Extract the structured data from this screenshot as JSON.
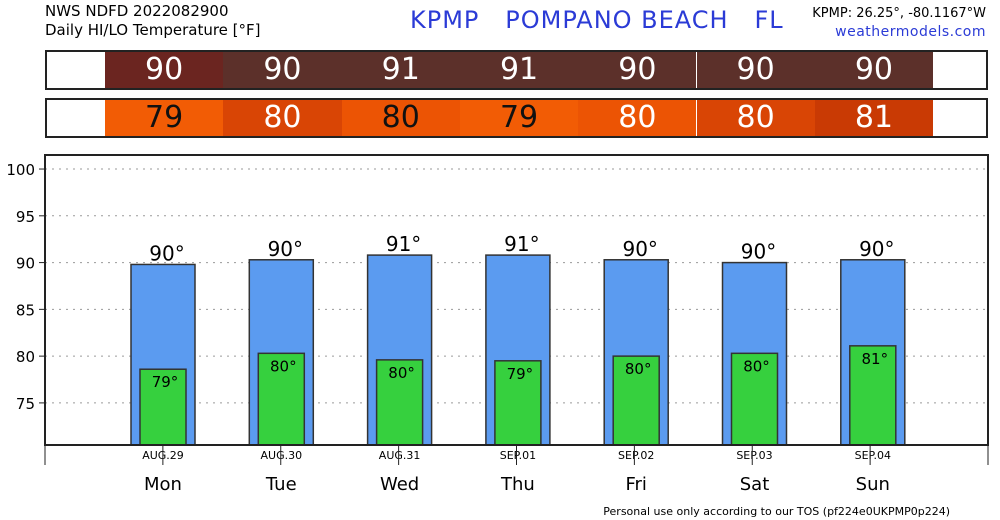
{
  "header": {
    "line1": "NWS NDFD 2022082900",
    "line2": "Daily HI/LO Temperature [°F]",
    "title": "KPMP   POMPANO BEACH   FL",
    "coords": "KPMP: 26.25°, -80.1167°W",
    "site": "weathermodels.com"
  },
  "strips": {
    "hi": [
      {
        "value": "90",
        "color": "#6b2520"
      },
      {
        "value": "90",
        "color": "#5c302a"
      },
      {
        "value": "91",
        "color": "#5c302a"
      },
      {
        "value": "91",
        "color": "#5c302a"
      },
      {
        "value": "90",
        "color": "#5c302a"
      },
      {
        "value": "90",
        "color": "#5c302a"
      },
      {
        "value": "90",
        "color": "#5c302a"
      }
    ],
    "lo": [
      {
        "value": "79",
        "color": "#f25c05"
      },
      {
        "value": "80",
        "color": "#d94505"
      },
      {
        "value": "80",
        "color": "#ec5404"
      },
      {
        "value": "79",
        "color": "#f25c05"
      },
      {
        "value": "80",
        "color": "#ec5404"
      },
      {
        "value": "80",
        "color": "#d94505"
      },
      {
        "value": "81",
        "color": "#c93a04"
      }
    ]
  },
  "chart_data": {
    "type": "bar",
    "categories": [
      "Mon",
      "Tue",
      "Wed",
      "Thu",
      "Fri",
      "Sat",
      "Sun"
    ],
    "dates": [
      "AUG.29",
      "AUG.30",
      "AUG.31",
      "SEP.01",
      "SEP.02",
      "SEP.03",
      "SEP.04"
    ],
    "series": [
      {
        "values": [
          89.8,
          90.3,
          90.8,
          90.8,
          90.3,
          90.0,
          90.3
        ],
        "labels": [
          "90°",
          "90°",
          "91°",
          "91°",
          "90°",
          "90°",
          "90°"
        ],
        "color": "#5b9bf0"
      },
      {
        "values": [
          78.6,
          80.3,
          79.6,
          79.5,
          80.0,
          80.3,
          81.1
        ],
        "labels": [
          "79°",
          "80°",
          "80°",
          "79°",
          "80°",
          "80°",
          "81°"
        ],
        "color": "#36d03e"
      }
    ],
    "yticks": [
      75,
      80,
      85,
      90,
      95,
      100
    ],
    "ylim": [
      70.5,
      101.5
    ],
    "grid": true
  },
  "footer": "Personal use only according to our TOS (pf224e0UKPMP0p224)"
}
